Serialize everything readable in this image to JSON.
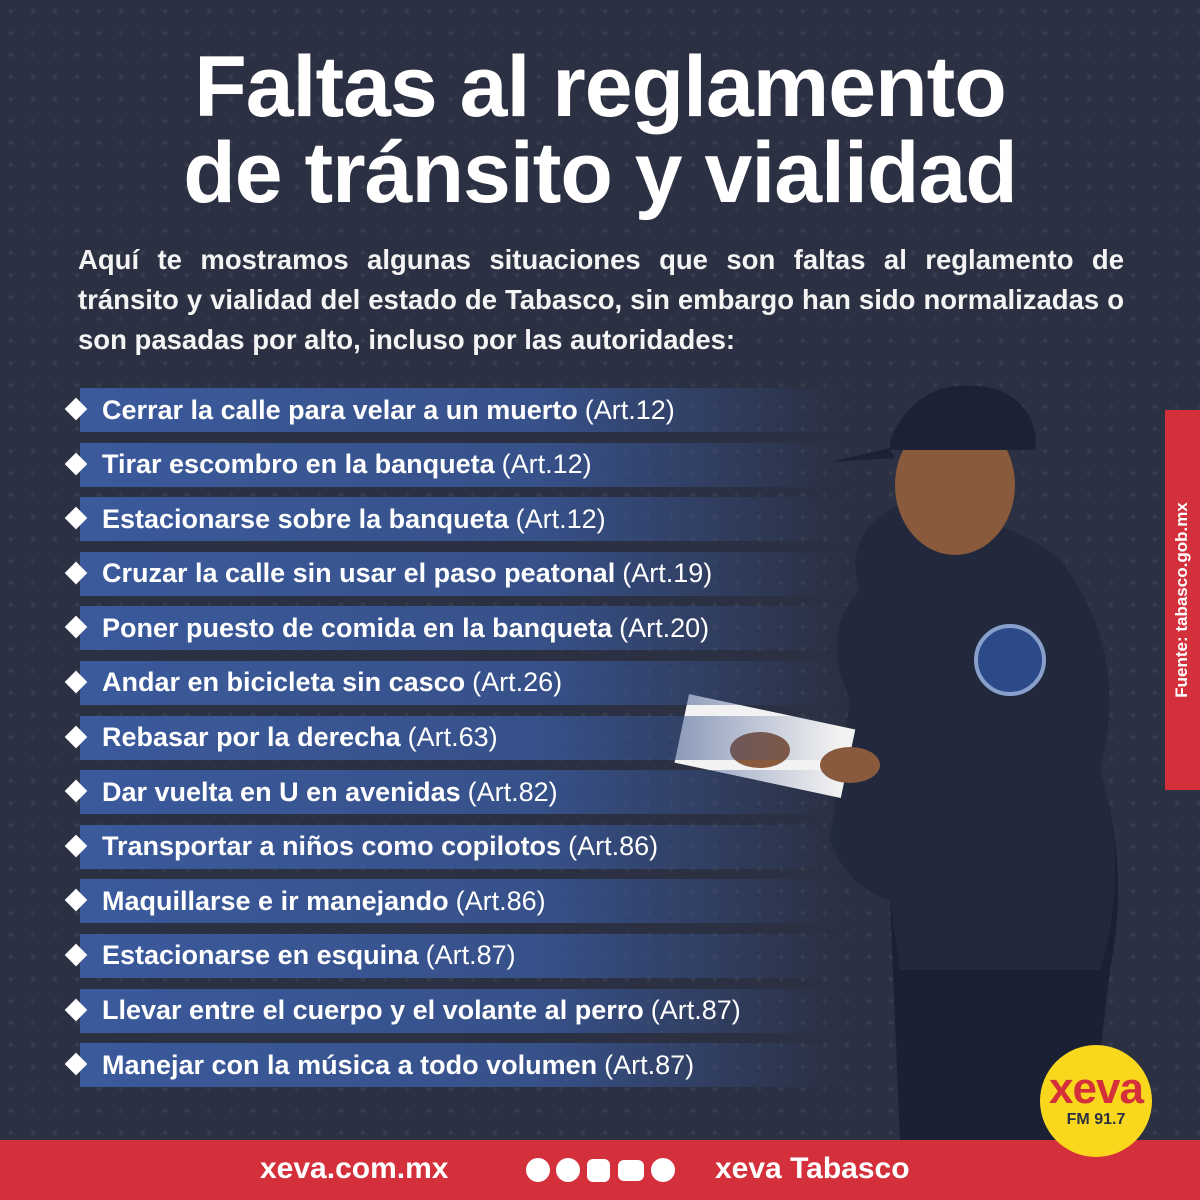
{
  "title": {
    "line1": "Faltas al reglamento",
    "line2": "de tránsito y vialidad"
  },
  "intro": "Aquí te mostramos algunas situaciones que son faltas al reglamento de tránsito y vialidad del estado de Tabasco, sin embargo han sido normalizadas o son pasadas por alto, incluso por las autoridades:",
  "items": [
    {
      "text": "Cerrar la calle para velar a un muerto",
      "article": "(Art.12)"
    },
    {
      "text": "Tirar escombro en la banqueta",
      "article": "(Art.12)"
    },
    {
      "text": "Estacionarse sobre la banqueta",
      "article": "(Art.12)"
    },
    {
      "text": "Cruzar la calle sin usar el paso peatonal",
      "article": "(Art.19)"
    },
    {
      "text": "Poner puesto de comida en la banqueta",
      "article": "(Art.20)"
    },
    {
      "text": "Andar en bicicleta sin casco",
      "article": "(Art.26)"
    },
    {
      "text": "Rebasar por la derecha",
      "article": "(Art.63)"
    },
    {
      "text": "Dar vuelta en U en avenidas",
      "article": "(Art.82)"
    },
    {
      "text": "Transportar a niños como copilotos",
      "article": "(Art.86)"
    },
    {
      "text": "Maquillarse e ir manejando",
      "article": "(Art.86)"
    },
    {
      "text": "Estacionarse en esquina",
      "article": "(Art.87)"
    },
    {
      "text": "Llevar entre el cuerpo y el volante al perro",
      "article": "(Art.87)"
    },
    {
      "text": "Manejar con la música a todo volumen",
      "article": "(Art.87)"
    }
  ],
  "source": "Fuente: tabasco.gob.mx",
  "footer": {
    "website": "xeva.com.mx",
    "handle": "xeva Tabasco"
  },
  "logo": {
    "name": "xeva",
    "station": "FM 91.7"
  }
}
